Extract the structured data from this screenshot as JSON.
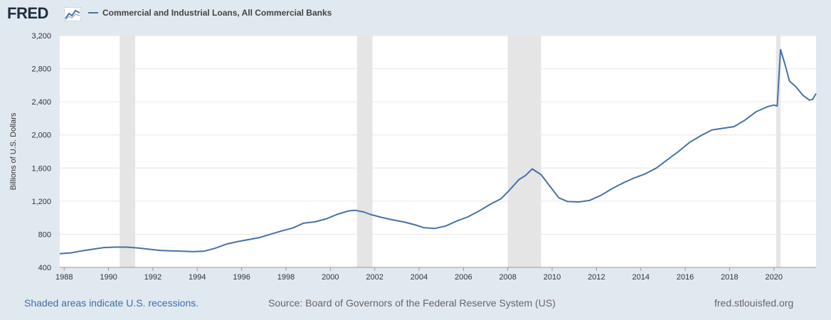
{
  "header": {
    "logo_text": "FRED",
    "logo_icon": "line-graph-icon"
  },
  "chart_data": {
    "type": "line",
    "title": "",
    "xlabel": "",
    "ylabel": "Billions of U.S. Dollars",
    "ylim": [
      400,
      3200
    ],
    "yticks": [
      400,
      800,
      1200,
      1600,
      2000,
      2400,
      2800,
      3200
    ],
    "ytick_labels": [
      "400",
      "800",
      "1,200",
      "1,600",
      "2,000",
      "2,400",
      "2,800",
      "3,200"
    ],
    "xlim": [
      1987.8,
      2021.9
    ],
    "xticks": [
      1988,
      1990,
      1992,
      1994,
      1996,
      1998,
      2000,
      2002,
      2004,
      2006,
      2008,
      2010,
      2012,
      2014,
      2016,
      2018,
      2020
    ],
    "grid": true,
    "legend": "top-left",
    "line_color": "#4572a7",
    "recession_color": "#e5e5e5",
    "recessions": [
      [
        1990.5,
        1991.2
      ],
      [
        2001.2,
        2001.9
      ],
      [
        2008.0,
        2009.5
      ],
      [
        2020.1,
        2020.3
      ]
    ],
    "series": [
      {
        "name": "Commercial and Industrial Loans, All Commercial Banks",
        "x": [
          1987.8,
          1988.3,
          1988.8,
          1989.3,
          1989.8,
          1990.3,
          1990.8,
          1991.3,
          1991.8,
          1992.3,
          1992.8,
          1993.3,
          1993.8,
          1994.3,
          1994.8,
          1995.3,
          1995.8,
          1996.3,
          1996.8,
          1997.3,
          1997.8,
          1998.3,
          1998.8,
          1999.3,
          1999.8,
          2000.3,
          2000.8,
          2001.1,
          2001.5,
          2001.8,
          2002.3,
          2002.8,
          2003.3,
          2003.8,
          2004.2,
          2004.7,
          2005.2,
          2005.7,
          2006.2,
          2006.7,
          2007.2,
          2007.7,
          2008.1,
          2008.5,
          2008.8,
          2009.1,
          2009.5,
          2009.9,
          2010.3,
          2010.7,
          2011.2,
          2011.7,
          2012.2,
          2012.7,
          2013.2,
          2013.7,
          2014.2,
          2014.7,
          2015.2,
          2015.7,
          2016.2,
          2016.7,
          2017.2,
          2017.7,
          2018.2,
          2018.7,
          2019.2,
          2019.7,
          2020.0,
          2020.15,
          2020.3,
          2020.5,
          2020.7,
          2021.0,
          2021.3,
          2021.6,
          2021.75,
          2021.9
        ],
        "values": [
          565,
          575,
          600,
          620,
          640,
          645,
          645,
          635,
          620,
          605,
          600,
          595,
          590,
          595,
          630,
          680,
          710,
          735,
          760,
          800,
          840,
          875,
          935,
          950,
          985,
          1040,
          1080,
          1090,
          1070,
          1040,
          1005,
          975,
          950,
          915,
          880,
          870,
          900,
          960,
          1010,
          1080,
          1160,
          1230,
          1340,
          1460,
          1510,
          1590,
          1520,
          1380,
          1240,
          1195,
          1190,
          1210,
          1270,
          1350,
          1420,
          1480,
          1530,
          1600,
          1700,
          1800,
          1910,
          1990,
          2060,
          2080,
          2100,
          2180,
          2280,
          2340,
          2360,
          2350,
          3030,
          2850,
          2650,
          2580,
          2480,
          2420,
          2430,
          2500
        ]
      }
    ]
  },
  "footer": {
    "note": "Shaded areas indicate U.S. recessions.",
    "source": "Source: Board of Governors of the Federal Reserve System (US)",
    "site": "fred.stlouisfed.org"
  }
}
